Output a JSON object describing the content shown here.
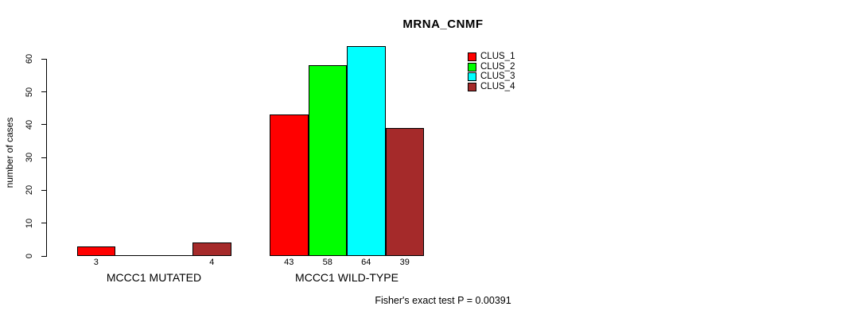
{
  "title": "MRNA_CNMF",
  "ylabel": "number of cases",
  "footer": "Fisher's exact test P = 0.00391",
  "chart_data": {
    "type": "bar",
    "title": "MRNA_CNMF",
    "xlabel": "",
    "ylabel": "number of cases",
    "ylim": [
      0,
      65
    ],
    "yticks": [
      0,
      10,
      20,
      30,
      40,
      50,
      60
    ],
    "grid": false,
    "legend_position": "top-right",
    "categories": [
      "MCCC1 MUTATED",
      "MCCC1 WILD-TYPE"
    ],
    "series": [
      {
        "name": "CLUS_1",
        "color": "#FF0000",
        "values": [
          3,
          43
        ]
      },
      {
        "name": "CLUS_2",
        "color": "#00FF00",
        "values": [
          0,
          58
        ]
      },
      {
        "name": "CLUS_3",
        "color": "#00FFFF",
        "values": [
          0,
          64
        ]
      },
      {
        "name": "CLUS_4",
        "color": "#A52A2A",
        "values": [
          4,
          39
        ]
      }
    ],
    "bar_value_labels": [
      [
        "3",
        "",
        "",
        "4"
      ],
      [
        "43",
        "58",
        "64",
        "39"
      ]
    ],
    "annotation": "Fisher's exact test P = 0.00391"
  }
}
